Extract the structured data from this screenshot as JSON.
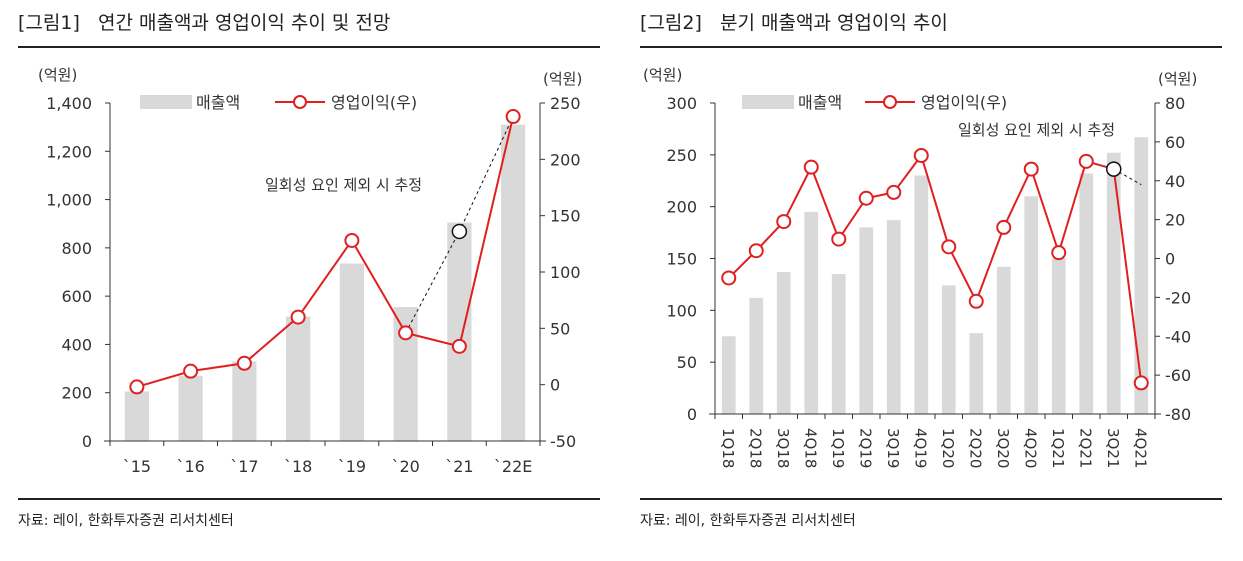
{
  "chart_data": [
    {
      "type": "bar+line",
      "title": "[그림1]   연간 매출액과 영업이익 추이 및 전망",
      "source": "자료: 레이, 한화투자증권 리서치센터",
      "categories": [
        "`15",
        "`16",
        "`17",
        "`18",
        "`19",
        "`20",
        "`21",
        "`22E"
      ],
      "left_unit": "(억원)",
      "right_unit": "(억원)",
      "ylim_left": [
        0,
        1400
      ],
      "yticks_left": [
        "0",
        "200",
        "400",
        "600",
        "800",
        "1,000",
        "1,200",
        "1,400"
      ],
      "ylim_right": [
        -50,
        250
      ],
      "yticks_right": [
        "-50",
        "0",
        "50",
        "100",
        "150",
        "200",
        "250"
      ],
      "series": [
        {
          "name": "매출액",
          "type": "bar",
          "axis": "left",
          "color": "#d9d9d9",
          "values": [
            205,
            270,
            330,
            515,
            735,
            555,
            905,
            1310
          ]
        },
        {
          "name": "영업이익(우)",
          "type": "line",
          "axis": "right",
          "color": "#e02020",
          "values": [
            -2,
            12,
            19,
            60,
            128,
            46,
            34,
            238
          ]
        }
      ],
      "estimate": {
        "label": "일회성 요인 제외 시 추정",
        "points": [
          {
            "category": "`20",
            "value": 46
          },
          {
            "category": "`21",
            "value": 136
          },
          {
            "category": "`22E",
            "value": 238
          }
        ]
      },
      "legend": "top"
    },
    {
      "type": "bar+line",
      "title": "[그림2]   분기 매출액과 영업이익 추이",
      "source": "자료: 레이, 한화투자증권 리서치센터",
      "categories": [
        "1Q18",
        "2Q18",
        "3Q18",
        "4Q18",
        "1Q19",
        "2Q19",
        "3Q19",
        "4Q19",
        "1Q20",
        "2Q20",
        "3Q20",
        "4Q20",
        "1Q21",
        "2Q21",
        "3Q21",
        "4Q21"
      ],
      "left_unit": "(억원)",
      "right_unit": "(억원)",
      "ylim_left": [
        0,
        300
      ],
      "yticks_left": [
        "0",
        "50",
        "100",
        "150",
        "200",
        "250",
        "300"
      ],
      "ylim_right": [
        -80,
        80
      ],
      "yticks_right": [
        "-80",
        "-60",
        "-40",
        "-20",
        "0",
        "20",
        "40",
        "60",
        "80"
      ],
      "series": [
        {
          "name": "매출액",
          "type": "bar",
          "axis": "left",
          "color": "#d9d9d9",
          "values": [
            75,
            112,
            137,
            195,
            135,
            180,
            187,
            230,
            124,
            78,
            142,
            210,
            150,
            232,
            252,
            267
          ]
        },
        {
          "name": "영업이익(우)",
          "type": "line",
          "axis": "right",
          "color": "#e02020",
          "values": [
            -10,
            4,
            19,
            47,
            10,
            31,
            34,
            53,
            6,
            -22,
            16,
            46,
            3,
            50,
            46,
            -64
          ]
        }
      ],
      "estimate": {
        "label": "일회성 요인 제외 시 추정",
        "points": [
          {
            "category": "3Q21",
            "value": 46
          },
          {
            "category": "4Q21",
            "value": 38
          }
        ]
      },
      "legend": "top"
    }
  ]
}
